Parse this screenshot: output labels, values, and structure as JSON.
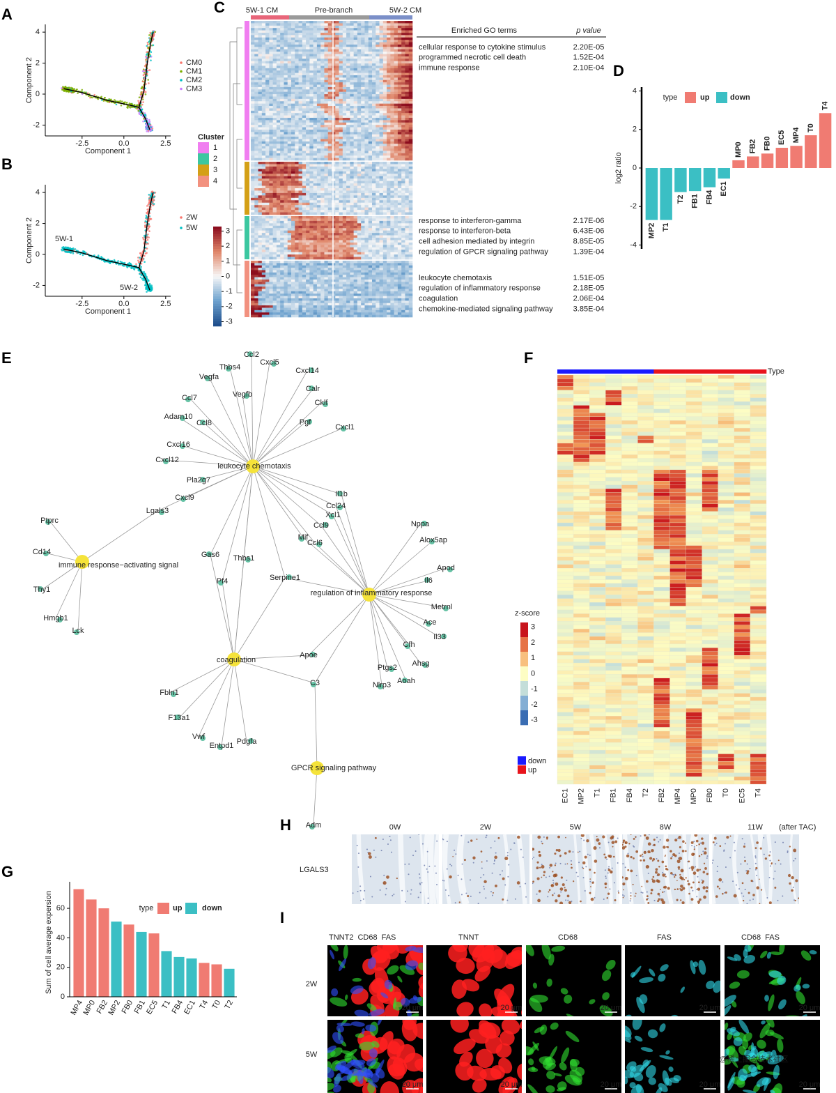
{
  "panel_letters": [
    "A",
    "B",
    "C",
    "D",
    "E",
    "F",
    "G",
    "H",
    "I"
  ],
  "panel_a": {
    "type": "scatter",
    "xlabel": "Component 1",
    "ylabel": "Component 2",
    "xlim": [
      -4.7,
      2.8
    ],
    "ylim": [
      -2.7,
      4.5
    ],
    "xticks": [
      {
        "value": -2.5,
        "label": "-2.5"
      },
      {
        "value": 0,
        "label": "0.0"
      },
      2.5
    ],
    "yticks": [
      -2,
      0,
      2,
      4
    ],
    "legend": [
      {
        "name": "CM0",
        "color": "#f8766d"
      },
      {
        "name": "CM1",
        "color": "#7cae00"
      },
      {
        "name": "CM2",
        "color": "#00bfc4"
      },
      {
        "name": "CM3",
        "color": "#c77cff"
      }
    ]
  },
  "panel_b": {
    "type": "scatter",
    "xlabel": "Component 1",
    "ylabel": "Component 2",
    "xlim": [
      -4.7,
      2.8
    ],
    "ylim": [
      -2.7,
      4.5
    ],
    "xticks": [
      {
        "value": -2.5,
        "label": "-2.5"
      },
      {
        "value": 0,
        "label": "0.0"
      },
      2.5
    ],
    "yticks": [
      -2,
      0,
      2,
      4
    ],
    "legend": [
      {
        "name": "2W",
        "color": "#f8766d"
      },
      {
        "name": "5W",
        "color": "#00bfc4"
      }
    ],
    "annotations": [
      "5W-1",
      "5W-2"
    ]
  },
  "panel_c": {
    "type": "heatmap",
    "top_labels": [
      "5W-1 CM",
      "Pre-branch",
      "5W-2 CM"
    ],
    "legend_title": "Cluster",
    "clusters": [
      {
        "name": "1",
        "color": "#f07ef0"
      },
      {
        "name": "2",
        "color": "#3cc7a0"
      },
      {
        "name": "3",
        "color": "#d4a017"
      },
      {
        "name": "4",
        "color": "#f2917f"
      }
    ],
    "colorbar_lim": [
      -3.3,
      3.3
    ],
    "colorbar_ticks": [
      3,
      2,
      1,
      0,
      -1,
      -2,
      -3
    ],
    "go_header": [
      "Enriched GO terms",
      "p value"
    ],
    "go_groups": [
      {
        "color": "#e020d0",
        "terms": [
          {
            "term": "cellular response to cytokine stimulus",
            "p": "2.20E-05"
          },
          {
            "term": "programmed necrotic cell death",
            "p": "1.52E-04"
          },
          {
            "term": "immune response",
            "p": "2.10E-04"
          }
        ]
      },
      {
        "color": "#2fb38a",
        "terms": [
          {
            "term": "response to interferon-gamma",
            "p": "2.17E-06"
          },
          {
            "term": "response to interferon-beta",
            "p": "6.43E-06"
          },
          {
            "term": "cell adhesion mediated by integrin",
            "p": "8.85E-05"
          },
          {
            "term": "regulation of GPCR signaling pathway",
            "p": "1.39E-04"
          }
        ]
      },
      {
        "color": "#f08a4b",
        "terms": [
          {
            "term": "leukocyte chemotaxis",
            "p": "1.51E-05"
          },
          {
            "term": "regulation of inflammatory response",
            "p": "2.18E-05"
          },
          {
            "term": "coagulation",
            "p": "2.06E-04"
          },
          {
            "term": "chemokine-mediated signaling pathway",
            "p": "3.85E-04"
          }
        ]
      }
    ]
  },
  "panel_d": {
    "type": "bar",
    "ylabel": "log2 ratio",
    "legend_title": "type",
    "legend": [
      {
        "name": "up",
        "color": "#f07b72"
      },
      {
        "name": "down",
        "color": "#3bbfc4"
      }
    ],
    "categories": [
      "MP2",
      "T1",
      "T2",
      "FB1",
      "FB4",
      "EC1",
      "MP0",
      "FB2",
      "FB0",
      "EC5",
      "MP4",
      "T0",
      "T4"
    ],
    "values": [
      -2.7,
      -2.7,
      -1.25,
      -1.2,
      -1.0,
      -0.55,
      0.4,
      0.6,
      0.75,
      1.05,
      1.15,
      1.7,
      2.85
    ],
    "types": [
      "down",
      "down",
      "down",
      "down",
      "down",
      "down",
      "up",
      "up",
      "up",
      "up",
      "up",
      "up",
      "up"
    ],
    "ylim": [
      -4.2,
      4.2
    ],
    "yticks": [
      4,
      2,
      0,
      -2,
      -4
    ]
  },
  "panel_e": {
    "type": "network",
    "hubs": [
      "leukocyte chemotaxis",
      "immune response−activating signal",
      "regulation of inflammatory response",
      "coagulation",
      "GPCR  signaling pathway"
    ],
    "genes": [
      "Ccl2",
      "Cxcl5",
      "Thbs4",
      "Cxcl14",
      "Vegfa",
      "Vegfb",
      "Calr",
      "Cklf",
      "Ccl7",
      "Pgf",
      "Cxcl1",
      "Adam10",
      "Ccl8",
      "Cxcl16",
      "Cxcl12",
      "Pla2g7",
      "Cxcl9",
      "Lgals3",
      "Il1b",
      "Ccl24",
      "Xcl1",
      "Ccl9",
      "Mif",
      "Ccl6",
      "Gas6",
      "Thbs1",
      "Pf4",
      "Serpine1",
      "Ptprc",
      "Cd14",
      "Thy1",
      "Hmgb1",
      "Lck",
      "Nppa",
      "Alox5ap",
      "Apod",
      "Il6",
      "Metrnl",
      "Ace",
      "Il33",
      "Cfh",
      "Ahsg",
      "Aoah",
      "Ptgs2",
      "Nlrp3",
      "Apoe",
      "C3",
      "Fbln1",
      "F13a1",
      "Vwf",
      "Entpd1",
      "Pdgfa",
      "Adm"
    ]
  },
  "panel_f": {
    "type": "heatmap",
    "columns": [
      "EC1",
      "MP2",
      "T1",
      "FB1",
      "FB4",
      "T2",
      "FB2",
      "MP4",
      "MP0",
      "FB0",
      "T0",
      "EC5",
      "T4"
    ],
    "type_label": "Type",
    "colorbar_title": "z-score",
    "colorbar_lim": [
      -3.3,
      3.3
    ],
    "colorbar_ticks": [
      3,
      2,
      1,
      0,
      -1,
      -2,
      -3
    ],
    "legend": [
      {
        "name": "down",
        "color": "#1a1aff"
      },
      {
        "name": "up",
        "color": "#e8141c"
      }
    ],
    "column_types": [
      "down",
      "down",
      "down",
      "down",
      "down",
      "down",
      "up",
      "up",
      "up",
      "up",
      "up",
      "up",
      "up"
    ]
  },
  "panel_g": {
    "type": "bar",
    "ylabel": "Sum of cell average expersion",
    "legend_title": "type",
    "legend": [
      {
        "name": "up",
        "color": "#f07b72"
      },
      {
        "name": "down",
        "color": "#3bbfc4"
      }
    ],
    "categories": [
      "MP4",
      "MP0",
      "FB2",
      "MP2",
      "FB0",
      "FB1",
      "EC5",
      "T1",
      "FB4",
      "EC1",
      "T4",
      "T0",
      "T2"
    ],
    "values": [
      73,
      66,
      60,
      51,
      49,
      44,
      43,
      31,
      27,
      26,
      23,
      22,
      19
    ],
    "types": [
      "up",
      "up",
      "up",
      "down",
      "up",
      "down",
      "up",
      "down",
      "down",
      "down",
      "up",
      "up",
      "down"
    ],
    "ylim": [
      0,
      78
    ],
    "yticks": [
      0,
      20,
      40,
      60
    ]
  },
  "panel_h": {
    "columns": [
      "0W",
      "2W",
      "5W",
      "8W",
      "11W"
    ],
    "note": "(after TAC)",
    "row_label": "LGALS3"
  },
  "panel_i": {
    "columns": [
      [
        {
          "text": "TNNT2",
          "color": "#ff2020"
        },
        {
          "text": "CD68",
          "color": "#20c020"
        },
        {
          "text": "FAS",
          "color": "#20b0e0"
        }
      ],
      [
        {
          "text": "TNNT",
          "color": "#ff2020"
        }
      ],
      [
        {
          "text": "CD68",
          "color": "#20c020"
        }
      ],
      [
        {
          "text": "FAS",
          "color": "#20b0e0"
        }
      ],
      [
        {
          "text": "CD68",
          "color": "#20c020"
        },
        {
          "text": "FAS",
          "color": "#20b0e0"
        }
      ]
    ],
    "rows": [
      "2W",
      "5W"
    ],
    "scale_bar": "20 μm",
    "watermark": "@稀土掘金技术社区"
  }
}
